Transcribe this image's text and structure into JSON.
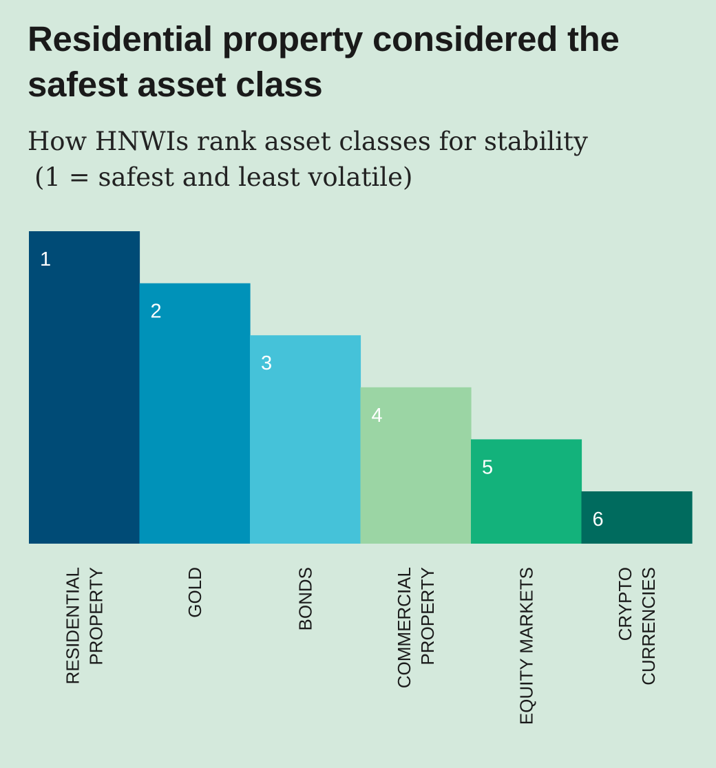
{
  "title": "Residential property considered the safest asset class",
  "subtitle_line1": "How HNWIs rank asset classes for stability",
  "subtitle_line2": "(1 = safest and least volatile)",
  "chart_data": {
    "type": "bar",
    "categories": [
      [
        "RESIDENTIAL",
        "PROPERTY"
      ],
      [
        "GOLD"
      ],
      [
        "BONDS"
      ],
      [
        "COMMERCIAL",
        "PROPERTY"
      ],
      [
        "EQUITY MARKETS"
      ],
      [
        "CRYPTO",
        "CURRENCIES"
      ]
    ],
    "values": [
      1,
      2,
      3,
      4,
      5,
      6
    ],
    "data_labels": [
      "1",
      "2",
      "3",
      "4",
      "5",
      "6"
    ],
    "colors": [
      "#004b76",
      "#0092b9",
      "#45c2d9",
      "#9bd5a4",
      "#13b27b",
      "#006b5e"
    ],
    "value_scale": "rank, 1 = tallest bar",
    "legend": "none",
    "grid": false
  }
}
